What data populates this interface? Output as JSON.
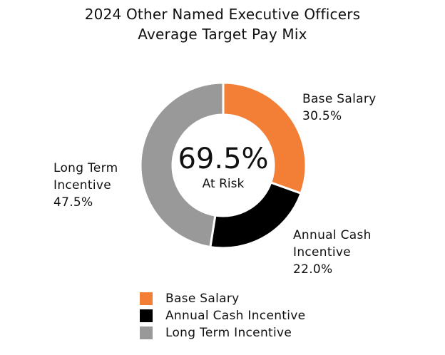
{
  "chart_data": {
    "type": "pie",
    "title_lines": [
      "2024 Other Named Executive Officers",
      "Average Target Pay Mix"
    ],
    "center_value": "69.5%",
    "center_label": "At Risk",
    "slices": [
      {
        "name": "Base Salary",
        "value": 30.5,
        "label": "30.5%",
        "color": "#F37E35"
      },
      {
        "name": "Annual Cash Incentive",
        "value": 22.0,
        "label": "22.0%",
        "color": "#000000"
      },
      {
        "name": "Long Term Incentive",
        "value": 47.5,
        "label": "47.5%",
        "color": "#999999"
      }
    ],
    "slice_label_lines": [
      [
        "Base Salary",
        "30.5%"
      ],
      [
        "Annual Cash",
        "Incentive",
        "22.0%"
      ],
      [
        "Long Term",
        "Incentive",
        "47.5%"
      ]
    ],
    "legend": [
      {
        "label": "Base Salary",
        "color": "#F37E35"
      },
      {
        "label": "Annual Cash Incentive",
        "color": "#000000"
      },
      {
        "label": "Long Term Incentive",
        "color": "#999999"
      }
    ],
    "legend_position": "bottom"
  }
}
